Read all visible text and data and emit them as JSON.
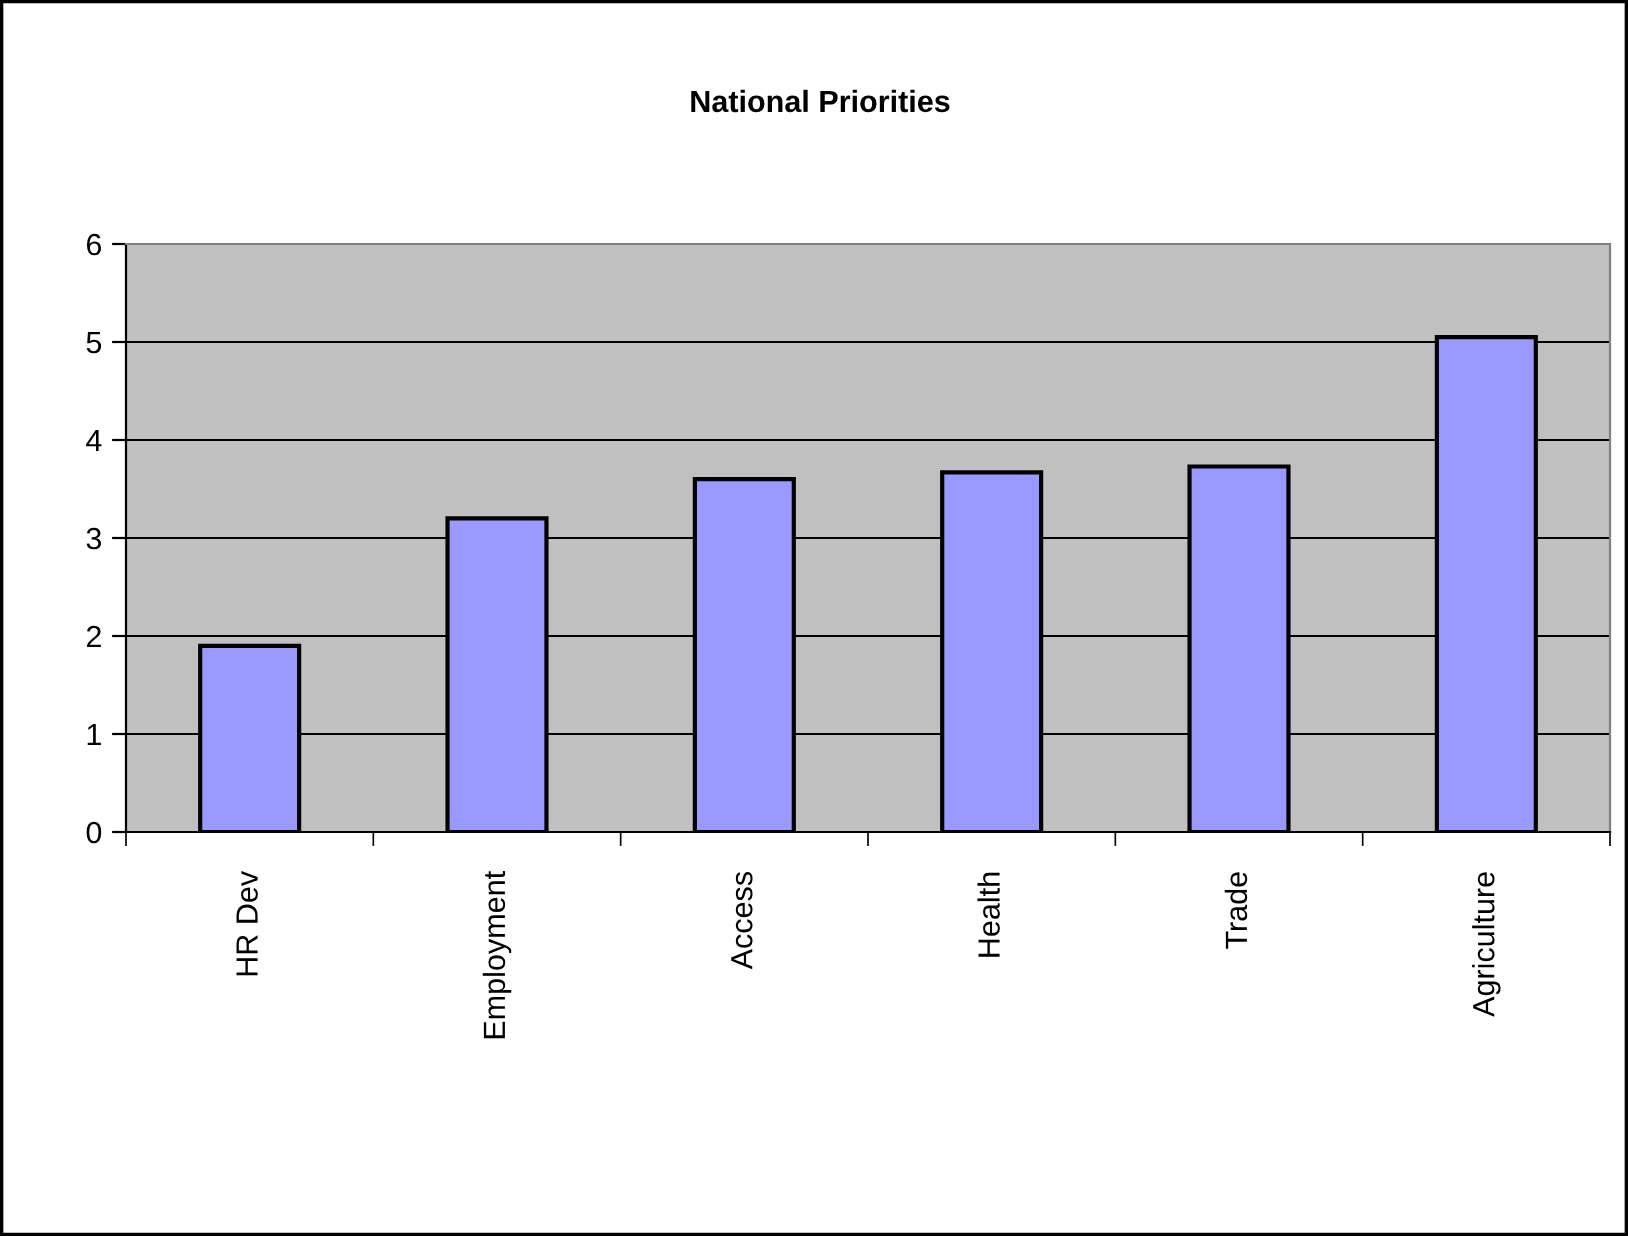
{
  "chart_data": {
    "type": "bar",
    "title": "National Priorities",
    "categories": [
      "HR Dev",
      "Employment",
      "Access",
      "Health",
      "Trade",
      "Agriculture"
    ],
    "values": [
      1.9,
      3.2,
      3.6,
      3.67,
      3.73,
      5.05
    ],
    "color": "#9999ff",
    "ylim": [
      0,
      6
    ],
    "yticks": [
      0,
      1,
      2,
      3,
      4,
      5,
      6
    ],
    "grid": "y"
  }
}
